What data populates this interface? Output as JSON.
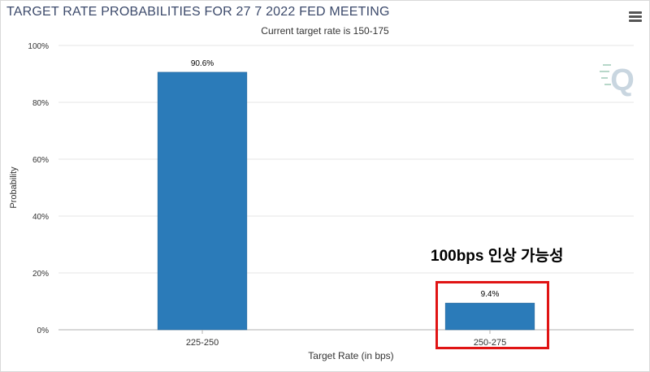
{
  "header": {
    "title": "TARGET RATE PROBABILITIES FOR 27 7 2022 FED MEETING",
    "menu_icon": "hamburger-menu-icon"
  },
  "watermark": {
    "icon": "q-logo-icon",
    "letter": "Q"
  },
  "annotation": {
    "text": "100bps 인상 가능성",
    "highlight_color": "#e01414"
  },
  "chart_data": {
    "type": "bar",
    "title": "TARGET RATE PROBABILITIES FOR 27 7 2022 FED MEETING",
    "subtitle": "Current target rate is 150-175",
    "categories": [
      "225-250",
      "250-275"
    ],
    "values": [
      90.6,
      9.4
    ],
    "data_labels": [
      "90.6%",
      "9.4%"
    ],
    "xlabel": "Target Rate (in bps)",
    "ylabel": "Probability",
    "ylim": [
      0,
      100
    ],
    "yticks": [
      "0%",
      "20%",
      "40%",
      "60%",
      "80%",
      "100%"
    ],
    "ytick_values": [
      0,
      20,
      40,
      60,
      80,
      100
    ],
    "grid": true,
    "bar_color": "#2b7bb9"
  }
}
